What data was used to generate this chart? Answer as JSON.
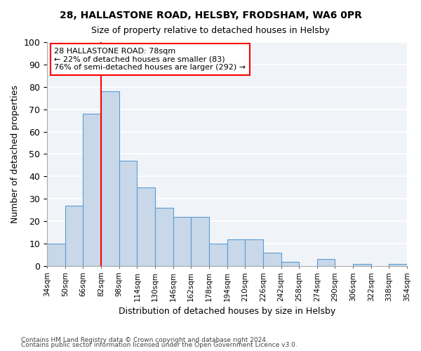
{
  "title": "28, HALLASTONE ROAD, HELSBY, FRODSHAM, WA6 0PR",
  "subtitle": "Size of property relative to detached houses in Helsby",
  "xlabel": "Distribution of detached houses by size in Helsby",
  "ylabel": "Number of detached properties",
  "bar_color": "#c8d8e8",
  "bar_edge_color": "#5b9bd5",
  "background_color": "#f0f4f8",
  "grid_color": "#ffffff",
  "tick_labels": [
    "34sqm",
    "50sqm",
    "66sqm",
    "82sqm",
    "98sqm",
    "114sqm",
    "130sqm",
    "146sqm",
    "162sqm",
    "178sqm",
    "194sqm",
    "210sqm",
    "226sqm",
    "242sqm",
    "258sqm",
    "274sqm",
    "290sqm",
    "306sqm",
    "322sqm",
    "338sqm",
    "354sqm"
  ],
  "values": [
    10,
    27,
    68,
    78,
    47,
    35,
    26,
    22,
    22,
    10,
    12,
    12,
    6,
    2,
    0,
    3,
    0,
    1,
    0,
    1
  ],
  "ylim": [
    0,
    100
  ],
  "yticks": [
    0,
    10,
    20,
    30,
    40,
    50,
    60,
    70,
    80,
    90,
    100
  ],
  "property_line_bin": 2.5,
  "annotation_text": "28 HALLASTONE ROAD: 78sqm\n← 22% of detached houses are smaller (83)\n76% of semi-detached houses are larger (292) →",
  "footnote1": "Contains HM Land Registry data © Crown copyright and database right 2024.",
  "footnote2": "Contains public sector information licensed under the Open Government Licence v3.0."
}
